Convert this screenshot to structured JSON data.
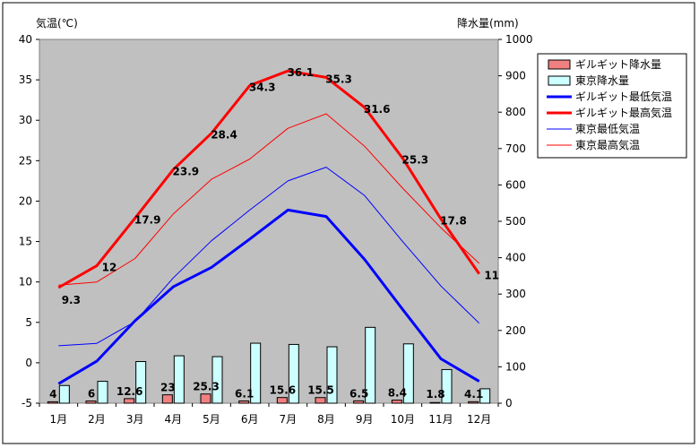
{
  "chart_data": {
    "type": "bar+line",
    "categories": [
      "1月",
      "2月",
      "3月",
      "4月",
      "5月",
      "6月",
      "7月",
      "8月",
      "9月",
      "10月",
      "11月",
      "12月"
    ],
    "y_left": {
      "label": "気温(℃)",
      "range": [
        -5,
        40
      ],
      "ticks": [
        "-5",
        "0",
        "5",
        "10",
        "15",
        "20",
        "25",
        "30",
        "35",
        "40"
      ]
    },
    "y_right": {
      "label": "降水量(mm)",
      "range": [
        0,
        1000
      ],
      "ticks": [
        "0",
        "100",
        "200",
        "300",
        "400",
        "500",
        "600",
        "700",
        "800",
        "900",
        "1000"
      ]
    },
    "grid": false,
    "legend_position": "right",
    "bars": [
      {
        "name": "ギルギット降水量",
        "axis": "right",
        "color": "#f08080",
        "values": [
          4,
          6,
          12.6,
          23,
          25.3,
          6.1,
          15.6,
          15.5,
          6.5,
          8.4,
          1.8,
          4.1
        ],
        "data_labels": [
          "4",
          "6",
          "12.6",
          "23",
          "25.3",
          "6.1",
          "15.6",
          "15.5",
          "6.5",
          "8.4",
          "1.8",
          "4.1"
        ]
      },
      {
        "name": "東京降水量",
        "axis": "right",
        "color": "#ccffff",
        "values": [
          48.6,
          60.2,
          114.5,
          130.3,
          128,
          164.9,
          161.5,
          155.1,
          208.5,
          163.1,
          92.5,
          39.6
        ]
      }
    ],
    "lines": [
      {
        "name": "ギルギット最低気温",
        "axis": "left",
        "color": "#0000ff",
        "width": 3,
        "values": [
          -2.6,
          0.2,
          5.2,
          9.4,
          11.8,
          15.3,
          18.9,
          18.1,
          12.8,
          6.6,
          0.5,
          -2.3
        ]
      },
      {
        "name": "ギルギット最高気温",
        "axis": "left",
        "color": "#ff0000",
        "width": 3,
        "values": [
          9.3,
          12,
          17.9,
          23.9,
          28.4,
          34.3,
          36.1,
          35.3,
          31.6,
          25.3,
          17.8,
          11
        ],
        "data_labels": [
          "9.3",
          "12",
          "17.9",
          "23.9",
          "28.4",
          "34.3",
          "36.1",
          "35.3",
          "31.6",
          "25.3",
          "17.8",
          "11"
        ]
      },
      {
        "name": "東京最低気温",
        "axis": "left",
        "color": "#0000ff",
        "width": 1,
        "values": [
          2.1,
          2.4,
          5.1,
          10.5,
          15.1,
          18.9,
          22.5,
          24.2,
          20.7,
          15,
          9.5,
          4.9
        ]
      },
      {
        "name": "東京最高気温",
        "axis": "left",
        "color": "#ff0000",
        "width": 1,
        "values": [
          9.6,
          10,
          12.9,
          18.4,
          22.7,
          25.2,
          29,
          30.8,
          26.8,
          21.6,
          16.7,
          12.3
        ]
      }
    ]
  }
}
